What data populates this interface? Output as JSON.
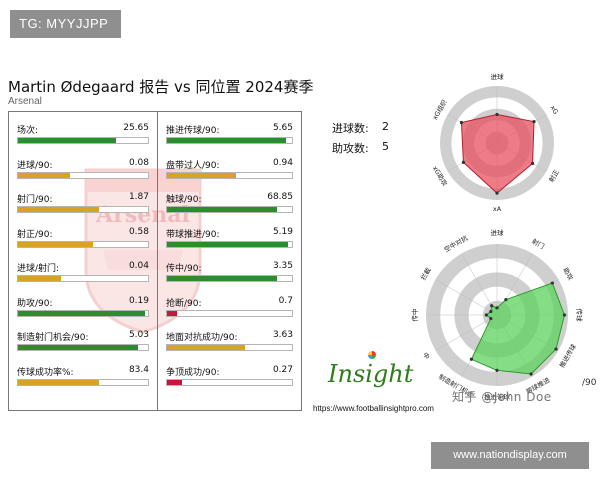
{
  "tag": "TG: MYYJJPP",
  "title": "Martin Ødegaard 报告 vs 同位置 2024赛季",
  "subtitle": "Arsenal",
  "watermark_text": "Arsenal",
  "colors": {
    "green": "#2e8b2e",
    "gold": "#d6a323",
    "red": "#c8163c",
    "radar_red": "#e8505e",
    "radar_green": "#5cd35c"
  },
  "left_stats": [
    {
      "label": "场次:",
      "value": "25.65",
      "fill": 0.75,
      "color": "green"
    },
    {
      "label": "进球/90:",
      "value": "0.08",
      "fill": 0.4,
      "color": "gold"
    },
    {
      "label": "射门/90:",
      "value": "1.87",
      "fill": 0.62,
      "color": "gold"
    },
    {
      "label": "射正/90:",
      "value": "0.58",
      "fill": 0.58,
      "color": "gold"
    },
    {
      "label": "进球/射门:",
      "value": "0.04",
      "fill": 0.33,
      "color": "gold"
    },
    {
      "label": "助攻/90:",
      "value": "0.19",
      "fill": 0.98,
      "color": "green"
    },
    {
      "label": "制造射门机会/90:",
      "value": "5.03",
      "fill": 0.92,
      "color": "green"
    },
    {
      "label": "传球成功率%:",
      "value": "83.4",
      "fill": 0.62,
      "color": "gold"
    }
  ],
  "right_stats": [
    {
      "label": "推进传球/90:",
      "value": "5.65",
      "fill": 0.95,
      "color": "green"
    },
    {
      "label": "盘带过人/90:",
      "value": "0.94",
      "fill": 0.55,
      "color": "gold"
    },
    {
      "label": "触球/90:",
      "value": "68.85",
      "fill": 0.88,
      "color": "green"
    },
    {
      "label": "带球推进/90:",
      "value": "5.19",
      "fill": 0.97,
      "color": "green"
    },
    {
      "label": "传中/90:",
      "value": "3.35",
      "fill": 0.88,
      "color": "green"
    },
    {
      "label": "抢断/90:",
      "value": "0.7",
      "fill": 0.08,
      "color": "red"
    },
    {
      "label": "地面对抗成功/90:",
      "value": "3.63",
      "fill": 0.62,
      "color": "gold"
    },
    {
      "label": "争顶成功/90:",
      "value": "0.27",
      "fill": 0.12,
      "color": "red"
    }
  ],
  "totals": [
    {
      "label": "进球数:",
      "value": "2"
    },
    {
      "label": "助攻数:",
      "value": "5"
    }
  ],
  "chart_data": [
    {
      "type": "radar",
      "categories": [
        "进球",
        "xG",
        "射正",
        "xA",
        "xG助攻",
        "xG组织"
      ],
      "values": [
        0.5,
        0.75,
        0.72,
        0.88,
        0.68,
        0.72
      ],
      "rmax": 1
    },
    {
      "type": "radar",
      "categories": [
        "进球",
        "射门",
        "助攻",
        "传球",
        "推进传球",
        "带球推进",
        "推进带球",
        "制造射门机会",
        "中",
        "传中",
        "拦截",
        "空中对抗"
      ],
      "values": [
        0.1,
        0.25,
        0.9,
        0.95,
        0.96,
        0.96,
        0.78,
        0.72,
        0.1,
        0.15,
        0.1,
        0.15
      ],
      "rmax": 1
    }
  ],
  "branding": {
    "logo_text": "Insight",
    "url": "https://www.footballinsightpro.com",
    "watermark": "知乎 @John Doe",
    "partial_label": "/90",
    "site": "www.nationdisplay.com"
  }
}
